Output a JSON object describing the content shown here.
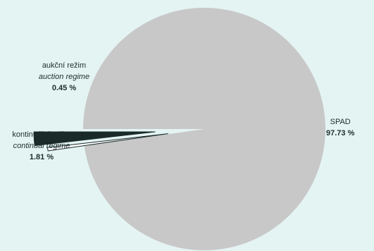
{
  "chart_data": {
    "type": "pie",
    "start_angle_deg": 180,
    "direction": "clockwise",
    "slices": [
      {
        "label_cs": "SPAD",
        "label_en": "",
        "value": 97.73,
        "display": "97.73 %",
        "color": "#c8c8c8",
        "stroke": "#c8c8c8"
      },
      {
        "label_cs": "aukční režim",
        "label_en": "auction regime",
        "value": 0.45,
        "display": "0.45 %",
        "color": "#ffffff",
        "stroke": "#1a2a28"
      },
      {
        "label_cs": "kontinuální režim",
        "label_en": "continual regime",
        "value": 1.81,
        "display": "1.81 %",
        "color": "#1a2a28",
        "stroke": "#1a2a28"
      }
    ]
  }
}
